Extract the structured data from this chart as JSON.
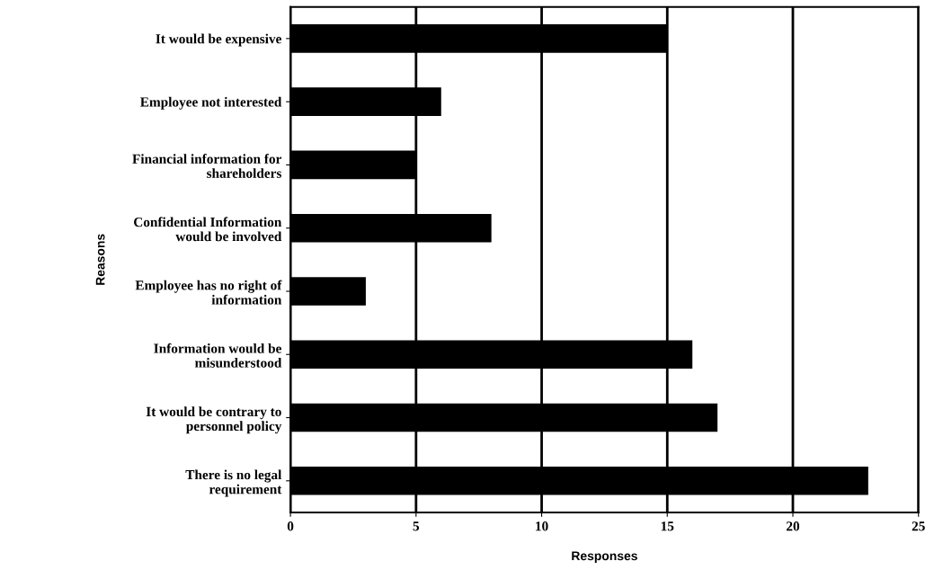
{
  "chart_data": {
    "type": "bar",
    "orientation": "horizontal",
    "xlabel": "Responses",
    "ylabel": "Reasons",
    "categories": [
      "It would be expensive",
      "Employee not interested",
      "Financial information for\nshareholders",
      "Confidential Information\nwould be involved",
      "Employee has no right of\ninformation",
      "Information would be\nmisunderstood",
      "It would be contrary to\npersonnel policy",
      "There is no legal\nrequirement"
    ],
    "values": [
      15,
      6,
      5,
      8,
      3,
      16,
      17,
      23
    ],
    "color": "#000000",
    "xlim": [
      0,
      25
    ],
    "xticks": [
      0,
      5,
      10,
      15,
      20,
      25
    ],
    "grid": "x"
  }
}
